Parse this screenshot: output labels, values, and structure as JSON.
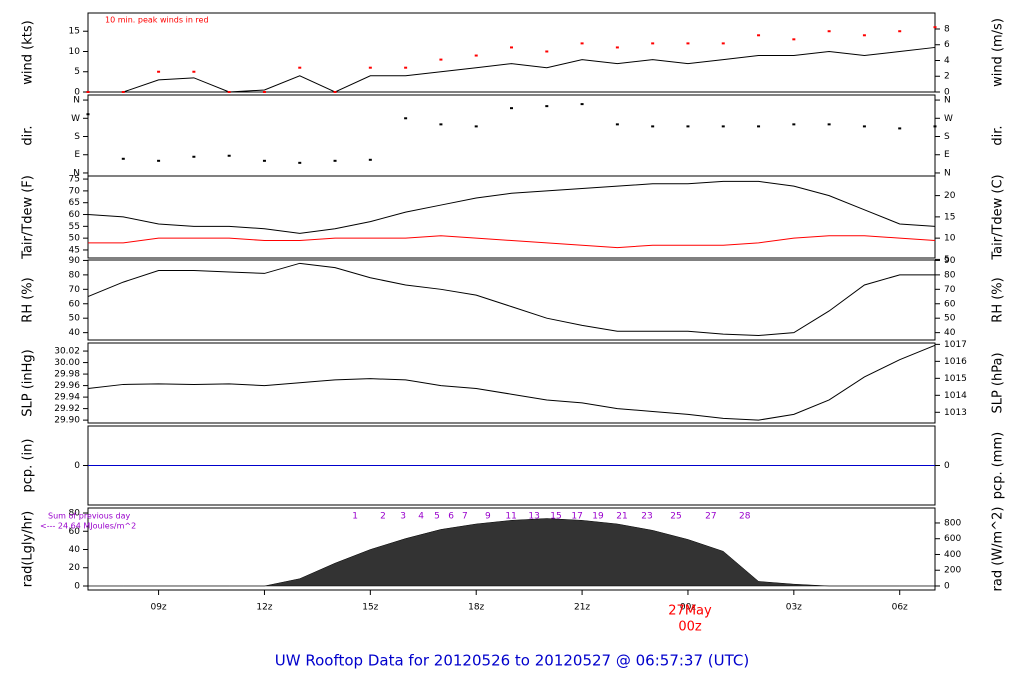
{
  "footer": "UW Rooftop Data for 20120526  to  20120527 @ 06:57:37  (UTC)",
  "chart_data": [
    {
      "type": "line",
      "ylabel": "wind (kts)",
      "y2label": "wind (m/s)",
      "annotation": "10 min. peak winds in red",
      "xlim": [
        7,
        31
      ],
      "ylim": [
        0,
        19.5
      ],
      "yticks": [
        0,
        5,
        10,
        15
      ],
      "y2lim": [
        0,
        10.03
      ],
      "y2ticks": [
        0,
        2,
        4,
        6,
        8
      ],
      "x": [
        7,
        8,
        9,
        10,
        11,
        12,
        13,
        14,
        15,
        16,
        17,
        18,
        19,
        20,
        21,
        22,
        23,
        24,
        25,
        26,
        27,
        28,
        29,
        30,
        31
      ],
      "series": [
        {
          "color": "#000000",
          "values": [
            0,
            0,
            3,
            3.5,
            0,
            0.5,
            4,
            0,
            4,
            4,
            5,
            6,
            7,
            6,
            8,
            7,
            8,
            7,
            8,
            9,
            9,
            10,
            9,
            10,
            11
          ]
        },
        {
          "type": "scatter",
          "color": "#ff0000",
          "values": [
            0,
            0,
            5,
            5,
            0,
            0,
            6,
            0,
            6,
            6,
            8,
            9,
            11,
            10,
            12,
            11,
            12,
            12,
            12,
            14,
            13,
            15,
            14,
            15,
            16
          ]
        }
      ]
    },
    {
      "type": "scatter",
      "ylabel": "dir.",
      "y2label": "dir.",
      "xlim": [
        7,
        31
      ],
      "ylim": [
        -15,
        385
      ],
      "yticks": [
        {
          "value": 0,
          "label": "N"
        },
        {
          "value": 90,
          "label": "E"
        },
        {
          "value": 180,
          "label": "S"
        },
        {
          "value": 270,
          "label": "W"
        },
        {
          "value": 360,
          "label": "N"
        }
      ],
      "y2lim": [
        -15,
        385
      ],
      "y2ticks": [
        {
          "value": 0,
          "label": "N"
        },
        {
          "value": 90,
          "label": "E"
        },
        {
          "value": 180,
          "label": "S"
        },
        {
          "value": 270,
          "label": "W"
        },
        {
          "value": 360,
          "label": "N"
        }
      ],
      "x": [
        7,
        8,
        9,
        10,
        11,
        12,
        13,
        14,
        15,
        16,
        17,
        18,
        19,
        20,
        21,
        22,
        23,
        24,
        25,
        26,
        27,
        28,
        29,
        30,
        31
      ],
      "series": [
        {
          "color": "#000000",
          "values": [
            290,
            70,
            60,
            80,
            85,
            60,
            50,
            60,
            65,
            270,
            240,
            230,
            320,
            330,
            340,
            240,
            230,
            230,
            230,
            230,
            240,
            240,
            230,
            220,
            230
          ]
        }
      ]
    },
    {
      "type": "line",
      "ylabel": "Tair/Tdew (F)",
      "y2label": "Tair/Tdew (C)",
      "xlim": [
        7,
        31
      ],
      "ylim": [
        41.6,
        76.3
      ],
      "yticks": [
        45,
        50,
        55,
        60,
        65,
        70,
        75
      ],
      "y2lim": [
        5.33,
        24.61
      ],
      "y2ticks": [
        5,
        10,
        15,
        20
      ],
      "x": [
        7,
        8,
        9,
        10,
        11,
        12,
        13,
        14,
        15,
        16,
        17,
        18,
        19,
        20,
        21,
        22,
        23,
        24,
        25,
        26,
        27,
        28,
        29,
        30,
        31
      ],
      "series": [
        {
          "color": "#000000",
          "values": [
            60,
            59,
            56,
            55,
            55,
            54,
            52,
            54,
            57,
            61,
            64,
            67,
            69,
            70,
            71,
            72,
            73,
            73,
            74,
            74,
            72,
            68,
            62,
            56,
            55
          ]
        },
        {
          "color": "#ff0000",
          "values": [
            48,
            48,
            50,
            50,
            50,
            49,
            49,
            50,
            50,
            50,
            51,
            50,
            49,
            48,
            47,
            46,
            47,
            47,
            47,
            48,
            50,
            51,
            51,
            50,
            49
          ]
        }
      ]
    },
    {
      "type": "line",
      "ylabel": "RH (%)",
      "y2label": "RH (%)",
      "xlim": [
        7,
        31
      ],
      "ylim": [
        34.9,
        90.3
      ],
      "yticks": [
        40,
        50,
        60,
        70,
        80,
        90
      ],
      "y2lim": [
        34.9,
        90.3
      ],
      "y2ticks": [
        40,
        50,
        60,
        70,
        80,
        90
      ],
      "x": [
        7,
        8,
        9,
        10,
        11,
        12,
        13,
        14,
        15,
        16,
        17,
        18,
        19,
        20,
        21,
        22,
        23,
        24,
        25,
        26,
        27,
        28,
        29,
        30,
        31
      ],
      "series": [
        {
          "color": "#000000",
          "values": [
            65,
            75,
            83,
            83,
            82,
            81,
            88,
            85,
            78,
            73,
            70,
            66,
            58,
            50,
            45,
            41,
            41,
            41,
            39,
            38,
            40,
            55,
            73,
            80,
            80
          ]
        }
      ]
    },
    {
      "type": "line",
      "ylabel": "SLP (inHg)",
      "y2label": "SLP (hPa)",
      "xlim": [
        7,
        31
      ],
      "ylim": [
        29.895,
        30.034
      ],
      "yticks": [
        {
          "value": 29.9,
          "label": "29.90"
        },
        {
          "value": 29.92,
          "label": "29.92"
        },
        {
          "value": 29.94,
          "label": "29.94"
        },
        {
          "value": 29.96,
          "label": "29.96"
        },
        {
          "value": 29.98,
          "label": "29.98"
        },
        {
          "value": 30,
          "label": "30.00"
        },
        {
          "value": 30.02,
          "label": "30.02"
        }
      ],
      "y2lim": [
        1012.37,
        1017.08
      ],
      "y2ticks": [
        1013,
        1014,
        1015,
        1016,
        1017
      ],
      "x": [
        7,
        8,
        9,
        10,
        11,
        12,
        13,
        14,
        15,
        16,
        17,
        18,
        19,
        20,
        21,
        22,
        23,
        24,
        25,
        26,
        27,
        28,
        29,
        30,
        31
      ],
      "series": [
        {
          "color": "#000000",
          "values": [
            29.955,
            29.962,
            29.963,
            29.962,
            29.963,
            29.96,
            29.965,
            29.97,
            29.972,
            29.97,
            29.96,
            29.955,
            29.945,
            29.935,
            29.93,
            29.92,
            29.915,
            29.91,
            29.903,
            29.9,
            29.91,
            29.935,
            29.975,
            30.005,
            30.03
          ]
        }
      ]
    },
    {
      "type": "line",
      "ylabel": "pcp. (in)",
      "y2label": "pcp. (mm)",
      "xlim": [
        7,
        31
      ],
      "ylim": [
        -0.1,
        0.1
      ],
      "yticks": [
        0
      ],
      "y2lim": [
        -2.54,
        2.54
      ],
      "y2ticks": [
        0
      ],
      "x": [
        7,
        8,
        9,
        10,
        11,
        12,
        13,
        14,
        15,
        16,
        17,
        18,
        19,
        20,
        21,
        22,
        23,
        24,
        25,
        26,
        27,
        28,
        29,
        30,
        31
      ],
      "series": [
        {
          "color": "#0000cc",
          "values": [
            0,
            0,
            0,
            0,
            0,
            0,
            0,
            0,
            0,
            0,
            0,
            0,
            0,
            0,
            0,
            0,
            0,
            0,
            0,
            0,
            0,
            0,
            0,
            0,
            0
          ]
        }
      ]
    },
    {
      "type": "area",
      "ylabel": "rad(Lgly/hr)",
      "y2label": "rad (W/m^2)",
      "sum_label": "Sum of previous day",
      "sum_value_label": "<--- 24.64 MJoules/m^2",
      "date_label": "27May",
      "hour_label": "00z",
      "cumulative_labels": {
        "x": [
          14.57,
          15.36,
          15.93,
          16.44,
          16.89,
          17.29,
          17.68,
          18.33,
          18.99,
          19.64,
          20.26,
          20.86,
          21.45,
          22.13,
          22.84,
          23.66,
          24.65,
          25.61
        ],
        "values": [
          1,
          2,
          3,
          4,
          5,
          6,
          7,
          9,
          11,
          13,
          15,
          17,
          19,
          21,
          23,
          25,
          27,
          28
        ]
      },
      "xlim": [
        7,
        31
      ],
      "xticks": [
        {
          "value": 9,
          "label": "09z"
        },
        {
          "value": 12,
          "label": "12z"
        },
        {
          "value": 15,
          "label": "15z"
        },
        {
          "value": 18,
          "label": "18z"
        },
        {
          "value": 21,
          "label": "21z"
        },
        {
          "value": 24,
          "label": "00z"
        },
        {
          "value": 27,
          "label": "03z"
        },
        {
          "value": 30,
          "label": "06z"
        }
      ],
      "ylim": [
        -4.4,
        85.5
      ],
      "yticks": [
        0,
        20,
        40,
        60,
        80
      ],
      "y2lim": [
        -51,
        990
      ],
      "y2ticks": [
        0,
        200,
        400,
        600,
        800
      ],
      "x": [
        7,
        8,
        9,
        10,
        11,
        12,
        13,
        14,
        15,
        16,
        17,
        18,
        19,
        20,
        21,
        22,
        23,
        24,
        25,
        26,
        27,
        28,
        29,
        30,
        31
      ],
      "series": [
        {
          "color": "#333333",
          "values": [
            0,
            0,
            0,
            0,
            0,
            0,
            8,
            25,
            40,
            52,
            62,
            68,
            72,
            74,
            72,
            68,
            61,
            51,
            38,
            5,
            2,
            0,
            0,
            0,
            0
          ]
        }
      ]
    }
  ]
}
